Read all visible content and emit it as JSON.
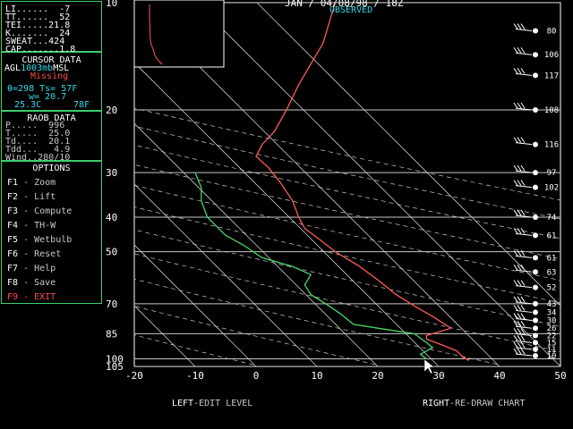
{
  "header": {
    "title": "JAN / 04/08/98 / 18Z",
    "subtitle": "OBSERVED"
  },
  "indices": {
    "li": "LI......  -7",
    "tt": "TT......  52",
    "tei": "TEI.....21.8",
    "k": "K.......  24",
    "sweat": "SWEAT...424",
    "cap": "CAP.......1.8"
  },
  "cursor_data": {
    "title": "CURSOR DATA",
    "agl_prefix": "AGL",
    "level": "1003mb",
    "msl_suffix": "MSL",
    "status": "Missing",
    "theta_line": "θ=298 Ts= 57F",
    "w_line": "w= 20.7",
    "temp_c": "25.3C",
    "temp_f": "78F"
  },
  "raob_data": {
    "title": "RAOB DATA",
    "p": "P.....  996",
    "t": "T.....  25.0",
    "td": "Td....  20.1",
    "tdd": "Tdd...   4.9",
    "wind": "Wind..280/10"
  },
  "options": {
    "title": "OPTIONS",
    "items": [
      {
        "key": "F1",
        "label": "Zoom"
      },
      {
        "key": "F2",
        "label": "Lift"
      },
      {
        "key": "F3",
        "label": "Compute"
      },
      {
        "key": "F4",
        "label": "TH-W"
      },
      {
        "key": "F5",
        "label": "Wetbulb"
      },
      {
        "key": "F6",
        "label": "Reset"
      },
      {
        "key": "F7",
        "label": "Help"
      },
      {
        "key": "F8",
        "label": "Save"
      },
      {
        "key": "F9",
        "label": "EXIT"
      }
    ],
    "separator": " - ",
    "exit_color": "#ff4b4b",
    "item_color": "#ffffff"
  },
  "footer": {
    "left_key": "LEFT",
    "left_text": "-EDIT LEVEL",
    "right_key": "RIGHT",
    "right_text": "-RE-DRAW CHART"
  },
  "chart_data": {
    "type": "line",
    "title": "",
    "xlabel": "",
    "ylabel": "",
    "x_ticks": [
      -20,
      -10,
      0,
      10,
      20,
      30,
      40,
      50
    ],
    "xlim": [
      -20,
      50
    ],
    "y_ticks": [
      10,
      20,
      30,
      40,
      50,
      70,
      85,
      100,
      105
    ],
    "ylim": [
      10,
      105
    ],
    "series": [
      {
        "color": "#ff5a5a",
        "points": [
          [
            13,
            10
          ],
          [
            11,
            13
          ],
          [
            7,
            17
          ],
          [
            5,
            20
          ],
          [
            3,
            23
          ],
          [
            1,
            25
          ],
          [
            0,
            27
          ],
          [
            2,
            29
          ],
          [
            4,
            32
          ],
          [
            6,
            36
          ],
          [
            7,
            40
          ],
          [
            8,
            43
          ],
          [
            11,
            47
          ],
          [
            13,
            50
          ],
          [
            17,
            55
          ],
          [
            20,
            60
          ],
          [
            23,
            66
          ],
          [
            26,
            71
          ],
          [
            29,
            76
          ],
          [
            32,
            82
          ],
          [
            28,
            86
          ],
          [
            28,
            88
          ],
          [
            31,
            92
          ],
          [
            33,
            95
          ],
          [
            34,
            99
          ],
          [
            35,
            101
          ]
        ]
      },
      {
        "color": "#4cd36a",
        "points": [
          [
            -10,
            30
          ],
          [
            -9,
            33
          ],
          [
            -9,
            36
          ],
          [
            -8,
            40
          ],
          [
            -5,
            45
          ],
          [
            -2,
            48
          ],
          [
            1,
            52
          ],
          [
            6,
            55
          ],
          [
            9,
            58
          ],
          [
            8,
            62
          ],
          [
            9,
            66
          ],
          [
            12,
            71
          ],
          [
            14,
            75
          ],
          [
            16,
            80
          ],
          [
            22,
            83
          ],
          [
            26,
            85
          ],
          [
            28,
            90
          ],
          [
            29,
            93
          ],
          [
            27,
            97
          ],
          [
            28,
            100
          ]
        ]
      }
    ],
    "wind_pressures": [
      12,
      14,
      16,
      20,
      25,
      30,
      33,
      40,
      45,
      52,
      57,
      63,
      70,
      74,
      78,
      82,
      86,
      90,
      94,
      98
    ],
    "wind_labels": [
      "80",
      "106",
      "117",
      "108",
      "116",
      "97",
      "102",
      "74",
      "61",
      "61",
      "63",
      "52",
      "43",
      "34",
      "30",
      "26",
      "22",
      "15",
      "11",
      "10"
    ],
    "inset_profile": [
      [
        12,
        5
      ],
      [
        12,
        20
      ],
      [
        13,
        45
      ],
      [
        14,
        50
      ],
      [
        16,
        55
      ],
      [
        18,
        62
      ],
      [
        22,
        68
      ],
      [
        26,
        72
      ]
    ],
    "grid_color": "#c8c8c8",
    "isotherm_color": "#c8c8c8"
  }
}
